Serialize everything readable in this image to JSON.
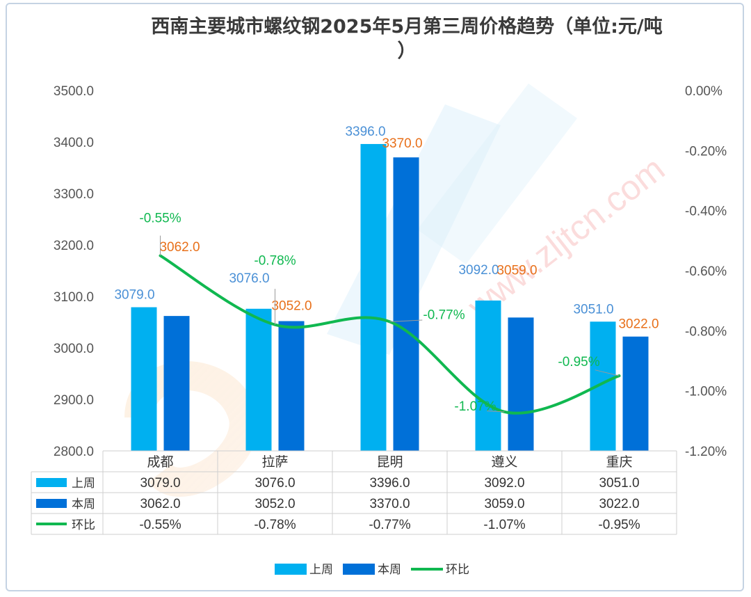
{
  "chart_data": {
    "type": "bar",
    "title": "西南主要城市螺纹钢2025年5月第三周价格趋势（单位:元/吨）",
    "categories": [
      "成都",
      "拉萨",
      "昆明",
      "遵义",
      "重庆"
    ],
    "series": [
      {
        "name": "上周",
        "kind": "bar",
        "axis": "left",
        "values": [
          3079.0,
          3076.0,
          3396.0,
          3092.0,
          3051.0
        ],
        "labels": [
          "3079.0",
          "3076.0",
          "3396.0",
          "3092.0",
          "3051.0"
        ],
        "color": "#00b0f0",
        "label_color": "#4a90d6"
      },
      {
        "name": "本周",
        "kind": "bar",
        "axis": "left",
        "values": [
          3062.0,
          3052.0,
          3370.0,
          3059.0,
          3022.0
        ],
        "labels": [
          "3062.0",
          "3052.0",
          "3370.0",
          "3059.0",
          "3022.0"
        ],
        "color": "#0070d8",
        "label_color": "#e8701a"
      },
      {
        "name": "环比",
        "kind": "line",
        "axis": "right",
        "values": [
          -0.55,
          -0.78,
          -0.77,
          -1.07,
          -0.95
        ],
        "labels": [
          "-0.55%",
          "-0.78%",
          "-0.77%",
          "-1.07%",
          "-0.95%"
        ],
        "color": "#10b850",
        "label_color": "#10b850"
      }
    ],
    "ylim_left": [
      2800,
      3500
    ],
    "ylim_right": [
      -1.2,
      0
    ],
    "yticks_left": [
      "3500.0",
      "3400.0",
      "3300.0",
      "3200.0",
      "3100.0",
      "3000.0",
      "2900.0",
      "2800.0"
    ],
    "yticks_right": [
      "0.00%",
      "-0.20%",
      "-0.40%",
      "-0.60%",
      "-0.80%",
      "-1.00%",
      "-1.20%"
    ],
    "data_table": true,
    "legend_position": "bottom",
    "grid": false
  },
  "watermark": {
    "text": "www.zljtcn.com"
  }
}
